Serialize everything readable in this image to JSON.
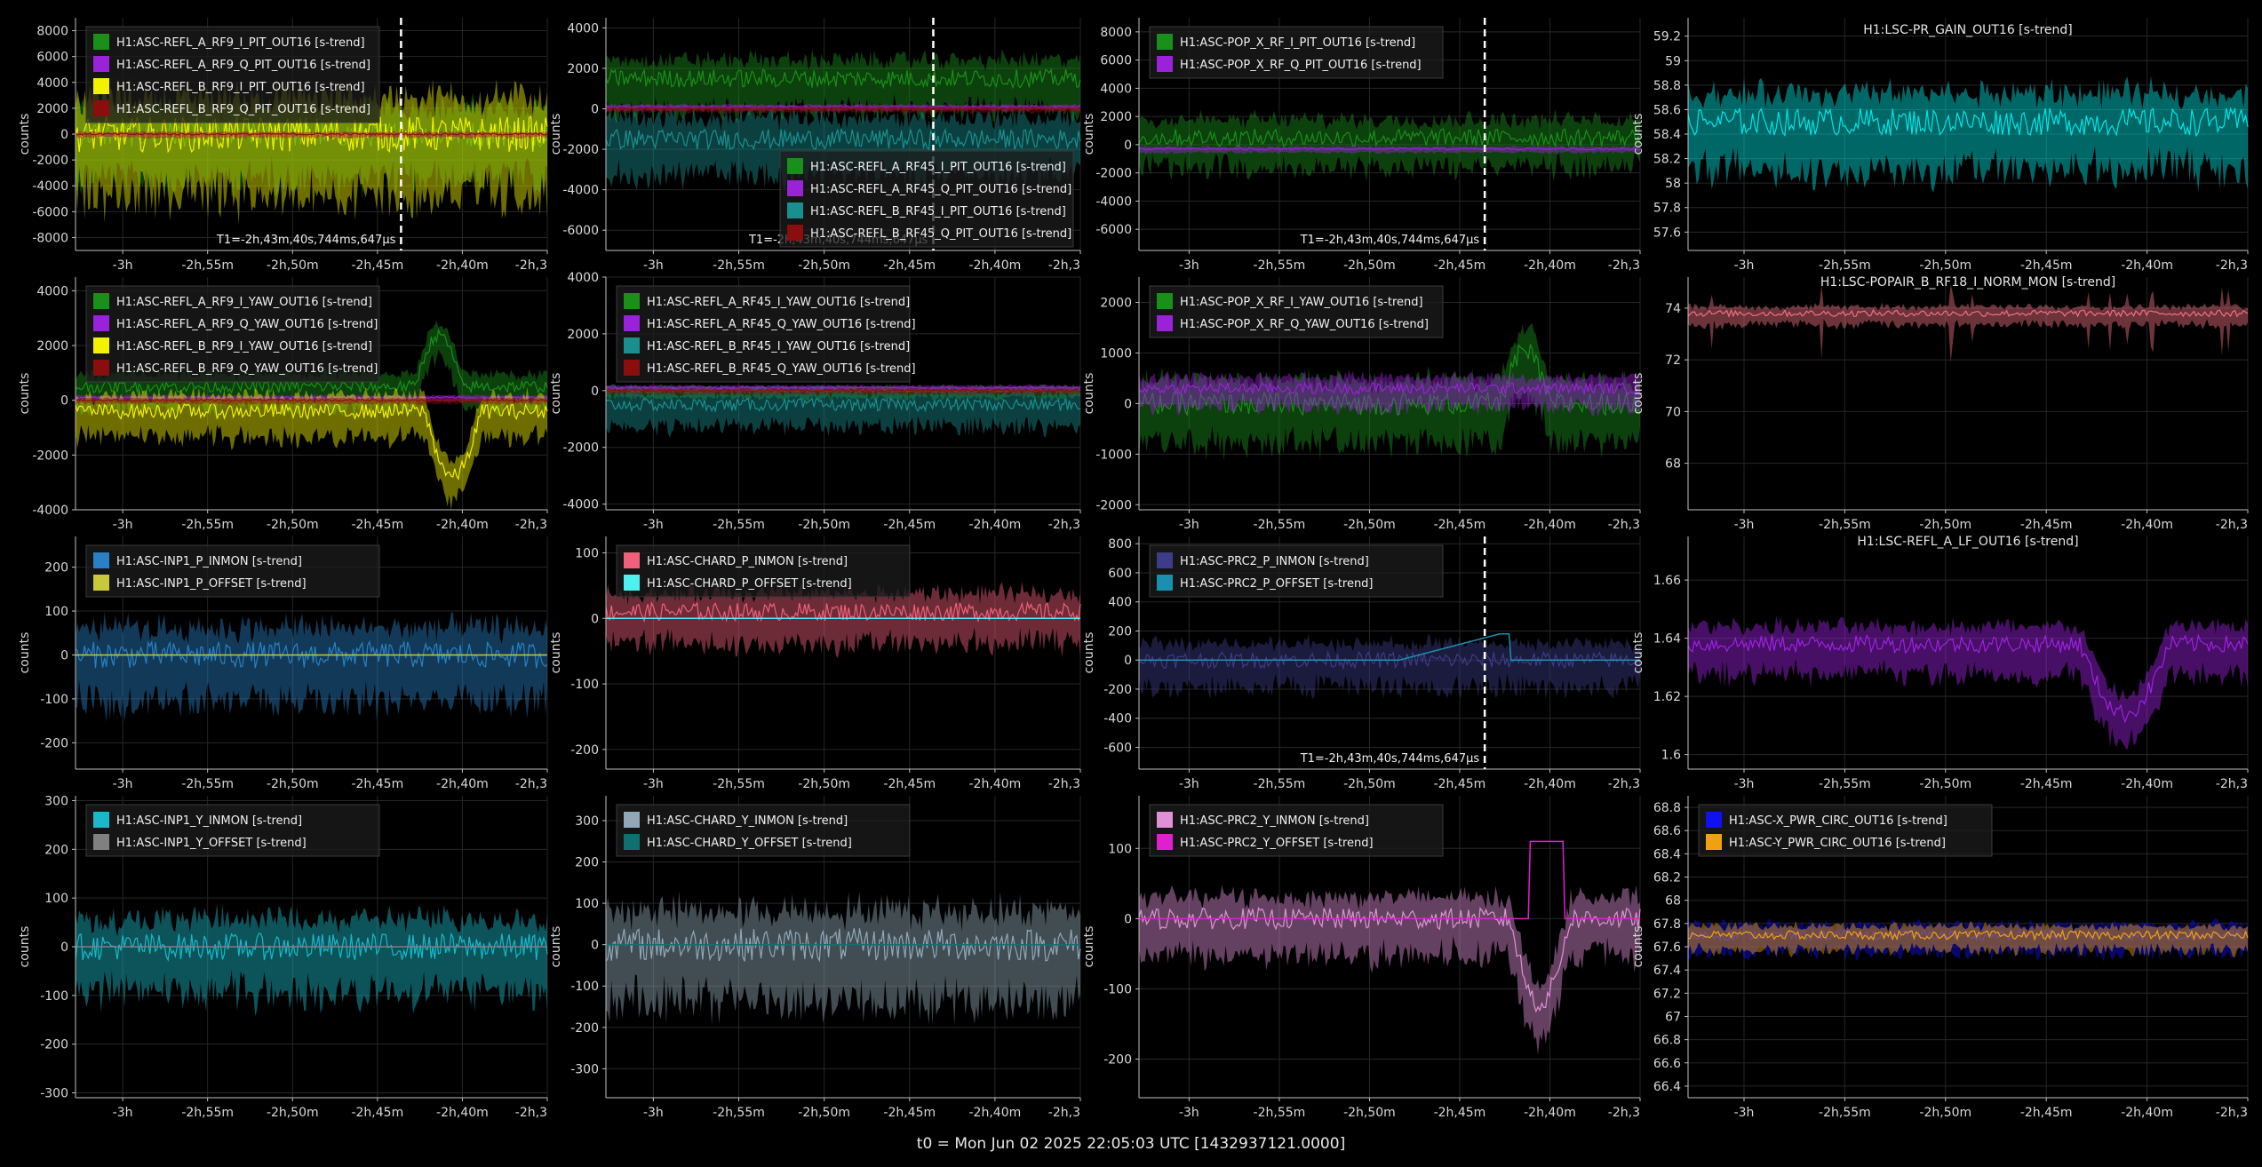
{
  "footer": "t0 = Mon Jun 02 2025 22:05:03 UTC [1432937121.0000]",
  "colors": {
    "background": "#000000",
    "axis": "#bfbfbf",
    "grid": "#262626"
  },
  "x_ticks": [
    "-3h",
    "-2h,55m",
    "-2h,50m",
    "-2h,45m",
    "-2h,40m",
    "-2h,3"
  ],
  "marker_label": "T1=-2h,43m,40s,744ms,647µs",
  "chart_data": [
    {
      "type": "line",
      "title": "",
      "ylabel": "counts",
      "legend": "top-left",
      "yticks": [
        "8000",
        "6000",
        "4000",
        "2000",
        "0",
        "-2000",
        "-4000",
        "-6000",
        "-8000"
      ],
      "ylim": [
        -9000,
        9000
      ],
      "marker": true,
      "series": [
        {
          "name": "H1:ASC-REFL_A_RF9_I_PIT_OUT16 [s-trend]",
          "color": "#1a8f1a",
          "mean": 0,
          "amp": 4000,
          "feature": "none"
        },
        {
          "name": "H1:ASC-REFL_A_RF9_Q_PIT_OUT16 [s-trend]",
          "color": "#9a22d8",
          "mean": 0,
          "amp": 300,
          "feature": "none"
        },
        {
          "name": "H1:ASC-REFL_B_RF9_I_PIT_OUT16 [s-trend]",
          "color": "#f2f200",
          "mean": 0,
          "amp": 5500,
          "feature": "none"
        },
        {
          "name": "H1:ASC-REFL_B_RF9_Q_PIT_OUT16 [s-trend]",
          "color": "#8b0d0d",
          "mean": 0,
          "amp": 300,
          "feature": "none"
        }
      ]
    },
    {
      "type": "line",
      "title": "",
      "ylabel": "counts",
      "legend": "bottom-right",
      "yticks": [
        "4000",
        "2000",
        "0",
        "-2000",
        "-4000",
        "-6000"
      ],
      "ylim": [
        -7000,
        4500
      ],
      "marker": true,
      "series": [
        {
          "name": "H1:ASC-REFL_A_RF45_I_PIT_OUT16 [s-trend]",
          "color": "#1a8f1a",
          "mean": 1500,
          "amp": 1800,
          "feature": "none"
        },
        {
          "name": "H1:ASC-REFL_A_RF45_Q_PIT_OUT16 [s-trend]",
          "color": "#9a22d8",
          "mean": 100,
          "amp": 200,
          "feature": "none"
        },
        {
          "name": "H1:ASC-REFL_B_RF45_I_PIT_OUT16 [s-trend]",
          "color": "#1a8f8f",
          "mean": -1500,
          "amp": 2000,
          "feature": "none"
        },
        {
          "name": "H1:ASC-REFL_B_RF45_Q_PIT_OUT16 [s-trend]",
          "color": "#8b0d0d",
          "mean": 0,
          "amp": 200,
          "feature": "none"
        }
      ]
    },
    {
      "type": "line",
      "title": "",
      "ylabel": "counts",
      "legend": "top-left",
      "yticks": [
        "8000",
        "6000",
        "4000",
        "2000",
        "0",
        "-2000",
        "-4000",
        "-6000"
      ],
      "ylim": [
        -7500,
        9000
      ],
      "marker": true,
      "series": [
        {
          "name": "H1:ASC-POP_X_RF_I_PIT_OUT16 [s-trend]",
          "color": "#1a8f1a",
          "mean": 500,
          "amp": 2500,
          "feature": "none"
        },
        {
          "name": "H1:ASC-POP_X_RF_Q_PIT_OUT16 [s-trend]",
          "color": "#9a22d8",
          "mean": -300,
          "amp": 300,
          "feature": "none"
        }
      ]
    },
    {
      "type": "line",
      "title": "H1:LSC-PR_GAIN_OUT16 [s-trend]",
      "ylabel": "counts",
      "legend": "none",
      "yticks": [
        "59.2",
        "59",
        "58.8",
        "58.6",
        "58.4",
        "58.2",
        "58",
        "57.8",
        "57.6"
      ],
      "ylim": [
        57.45,
        59.35
      ],
      "marker": false,
      "series": [
        {
          "color": "#00e5e5",
          "mean": 58.5,
          "amp": 0.45,
          "feature": "none"
        }
      ]
    },
    {
      "type": "line",
      "title": "",
      "ylabel": "counts",
      "legend": "top-left",
      "yticks": [
        "4000",
        "2000",
        "0",
        "-2000",
        "-4000"
      ],
      "ylim": [
        -4000,
        4500
      ],
      "marker": false,
      "series": [
        {
          "name": "H1:ASC-REFL_A_RF9_I_YAW_OUT16 [s-trend]",
          "color": "#1a8f1a",
          "mean": 500,
          "amp": 900,
          "feature": "bump-up"
        },
        {
          "name": "H1:ASC-REFL_A_RF9_Q_YAW_OUT16 [s-trend]",
          "color": "#9a22d8",
          "mean": 100,
          "amp": 150,
          "feature": "none"
        },
        {
          "name": "H1:ASC-REFL_B_RF9_I_YAW_OUT16 [s-trend]",
          "color": "#f2f200",
          "mean": -400,
          "amp": 1100,
          "feature": "dip"
        },
        {
          "name": "H1:ASC-REFL_B_RF9_Q_YAW_OUT16 [s-trend]",
          "color": "#8b0d0d",
          "mean": 0,
          "amp": 150,
          "feature": "none"
        }
      ]
    },
    {
      "type": "line",
      "title": "",
      "ylabel": "counts",
      "legend": "top-left",
      "yticks": [
        "4000",
        "2000",
        "0",
        "-2000",
        "-4000"
      ],
      "ylim": [
        -4200,
        4000
      ],
      "marker": false,
      "series": [
        {
          "name": "H1:ASC-REFL_A_RF45_I_YAW_OUT16 [s-trend]",
          "color": "#1a8f1a",
          "mean": 0,
          "amp": 300,
          "feature": "none"
        },
        {
          "name": "H1:ASC-REFL_A_RF45_Q_YAW_OUT16 [s-trend]",
          "color": "#9a22d8",
          "mean": 100,
          "amp": 150,
          "feature": "none"
        },
        {
          "name": "H1:ASC-REFL_B_RF45_I_YAW_OUT16 [s-trend]",
          "color": "#1a8f8f",
          "mean": -500,
          "amp": 900,
          "feature": "none"
        },
        {
          "name": "H1:ASC-REFL_B_RF45_Q_YAW_OUT16 [s-trend]",
          "color": "#8b0d0d",
          "mean": 0,
          "amp": 150,
          "feature": "none"
        }
      ]
    },
    {
      "type": "line",
      "title": "",
      "ylabel": "counts",
      "legend": "top-left",
      "yticks": [
        "2000",
        "1000",
        "0",
        "-1000",
        "-2000"
      ],
      "ylim": [
        -2100,
        2500
      ],
      "marker": false,
      "series": [
        {
          "name": "H1:ASC-POP_X_RF_I_YAW_OUT16 [s-trend]",
          "color": "#1a8f1a",
          "mean": 0,
          "amp": 900,
          "feature": "bump-up"
        },
        {
          "name": "H1:ASC-POP_X_RF_Q_YAW_OUT16 [s-trend]",
          "color": "#9a22d8",
          "mean": 300,
          "amp": 450,
          "feature": "none"
        }
      ]
    },
    {
      "type": "line",
      "title": "H1:LSC-POPAIR_B_RF18_I_NORM_MON [s-trend]",
      "ylabel": "counts",
      "legend": "none",
      "yticks": [
        "74",
        "72",
        "70",
        "68"
      ],
      "ylim": [
        66.2,
        75.2
      ],
      "marker": false,
      "series": [
        {
          "color": "#f07080",
          "mean": 73.8,
          "amp": 0.5,
          "feature": "spikes-down"
        }
      ]
    },
    {
      "type": "line",
      "title": "",
      "ylabel": "counts",
      "legend": "top-left",
      "yticks": [
        "200",
        "100",
        "0",
        "-100",
        "-200"
      ],
      "ylim": [
        -260,
        270
      ],
      "marker": false,
      "series": [
        {
          "name": "H1:ASC-INP1_P_INMON [s-trend]",
          "color": "#2980c4",
          "mean": 0,
          "amp": 120,
          "feature": "none"
        },
        {
          "name": "H1:ASC-INP1_P_OFFSET [s-trend]",
          "color": "#c8c83a",
          "mean": 0,
          "amp": 0,
          "feature": "flat"
        }
      ]
    },
    {
      "type": "line",
      "title": "",
      "ylabel": "counts",
      "legend": "top-left",
      "yticks": [
        "100",
        "0",
        "-100",
        "-200"
      ],
      "ylim": [
        -230,
        125
      ],
      "marker": false,
      "series": [
        {
          "name": "H1:ASC-CHARD_P_INMON [s-trend]",
          "color": "#f06078",
          "mean": 10,
          "amp": 55,
          "feature": "none"
        },
        {
          "name": "H1:ASC-CHARD_P_OFFSET [s-trend]",
          "color": "#4ff0f0",
          "mean": 0,
          "amp": 0,
          "feature": "flat"
        }
      ]
    },
    {
      "type": "line",
      "title": "",
      "ylabel": "counts",
      "legend": "top-left",
      "yticks": [
        "800",
        "600",
        "400",
        "200",
        "0",
        "-200",
        "-400",
        "-600"
      ],
      "ylim": [
        -750,
        850
      ],
      "marker": true,
      "series": [
        {
          "name": "H1:ASC-PRC2_P_INMON [s-trend]",
          "color": "#3c3c88",
          "mean": 0,
          "amp": 220,
          "feature": "none"
        },
        {
          "name": "H1:ASC-PRC2_P_OFFSET [s-trend]",
          "color": "#1a90b0",
          "mean": 0,
          "amp": 0,
          "feature": "ramp"
        }
      ]
    },
    {
      "type": "line",
      "title": "H1:LSC-REFL_A_LF_OUT16 [s-trend]",
      "ylabel": "counts",
      "legend": "none",
      "yticks": [
        "1.66",
        "1.64",
        "1.62",
        "1.6"
      ],
      "ylim": [
        1.595,
        1.675
      ],
      "marker": false,
      "series": [
        {
          "color": "#9d22e0",
          "mean": 1.638,
          "amp": 0.012,
          "feature": "dip-wide"
        }
      ]
    },
    {
      "type": "line",
      "title": "",
      "ylabel": "counts",
      "legend": "top-left",
      "yticks": [
        "300",
        "200",
        "100",
        "0",
        "-100",
        "-200",
        "-300"
      ],
      "ylim": [
        -310,
        310
      ],
      "marker": false,
      "series": [
        {
          "name": "H1:ASC-INP1_Y_INMON [s-trend]",
          "color": "#1ab8c8",
          "mean": 0,
          "amp": 110,
          "feature": "none"
        },
        {
          "name": "H1:ASC-INP1_Y_OFFSET [s-trend]",
          "color": "#808080",
          "mean": 0,
          "amp": 0,
          "feature": "flat"
        }
      ]
    },
    {
      "type": "line",
      "title": "",
      "ylabel": "counts",
      "legend": "top-left",
      "yticks": [
        "300",
        "200",
        "100",
        "0",
        "-100",
        "-200",
        "-300"
      ],
      "ylim": [
        -370,
        360
      ],
      "marker": false,
      "series": [
        {
          "name": "H1:ASC-CHARD_Y_INMON [s-trend]",
          "color": "#90a8b8",
          "mean": 0,
          "amp": 160,
          "feature": "none"
        },
        {
          "name": "H1:ASC-CHARD_Y_OFFSET [s-trend]",
          "color": "#107070",
          "mean": 0,
          "amp": 0,
          "feature": "flat"
        }
      ]
    },
    {
      "type": "line",
      "title": "",
      "ylabel": "counts",
      "legend": "top-left",
      "yticks": [
        "100",
        "0",
        "-100",
        "-200"
      ],
      "ylim": [
        -255,
        175
      ],
      "marker": false,
      "series": [
        {
          "name": "H1:ASC-PRC2_Y_INMON [s-trend]",
          "color": "#e090d8",
          "mean": 0,
          "amp": 60,
          "feature": "dip"
        },
        {
          "name": "H1:ASC-PRC2_Y_OFFSET [s-trend]",
          "color": "#e020d0",
          "mean": 0,
          "amp": 0,
          "feature": "step"
        }
      ]
    },
    {
      "type": "line",
      "title": "",
      "ylabel": "counts",
      "legend": "top-left",
      "yticks": [
        "68.8",
        "68.6",
        "68.4",
        "68.2",
        "68",
        "67.8",
        "67.6",
        "67.4",
        "67.2",
        "67",
        "66.8",
        "66.6",
        "66.4"
      ],
      "ylim": [
        66.3,
        68.9
      ],
      "marker": false,
      "series": [
        {
          "name": "H1:ASC-X_PWR_CIRC_OUT16 [s-trend]",
          "color": "#1010f0",
          "mean": 67.7,
          "amp": 0.18,
          "feature": "none"
        },
        {
          "name": "H1:ASC-Y_PWR_CIRC_OUT16 [s-trend]",
          "color": "#f0a010",
          "mean": 67.7,
          "amp": 0.15,
          "feature": "none"
        }
      ]
    }
  ]
}
